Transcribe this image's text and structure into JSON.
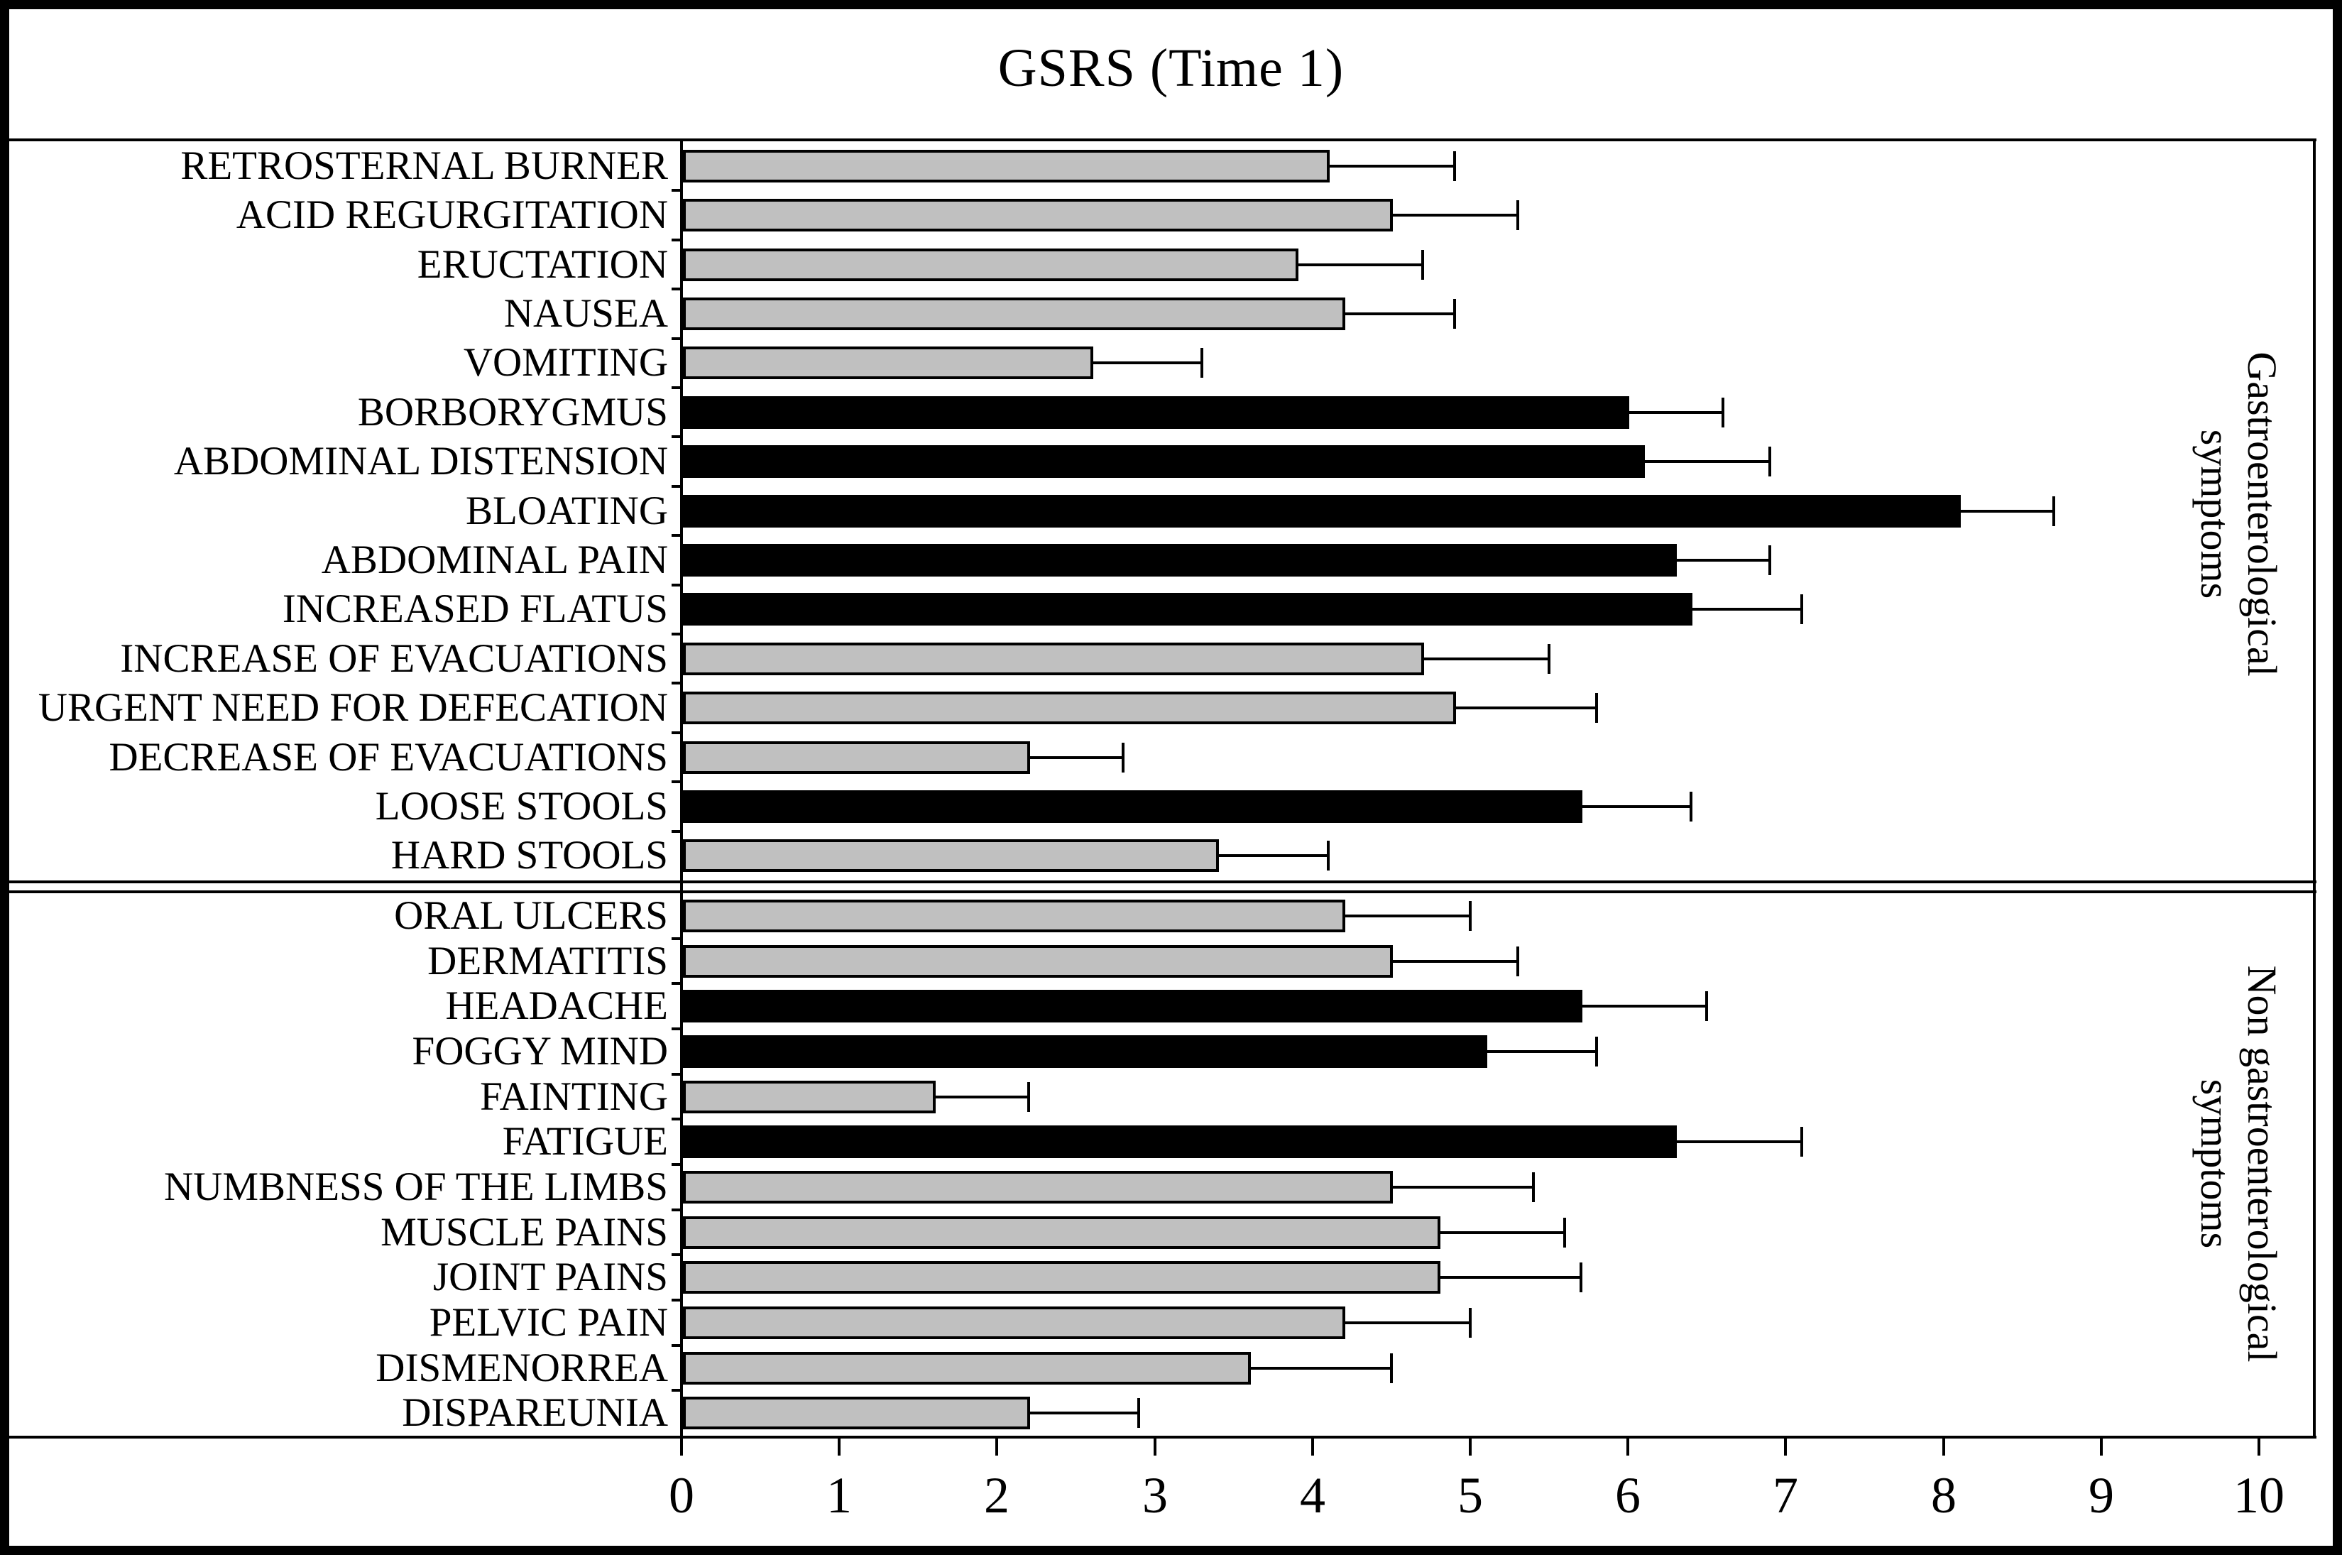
{
  "chart_data": {
    "type": "bar",
    "orientation": "horizontal",
    "title": "GSRS (Time 1)",
    "xlabel": "",
    "ylabel": "",
    "xlim": [
      0,
      10
    ],
    "x_ticks": [
      "0",
      "1",
      "2",
      "3",
      "4",
      "5",
      "6",
      "7",
      "8",
      "9",
      "10"
    ],
    "grid": false,
    "legend": false,
    "error_bars": "upper",
    "groups": [
      {
        "name": "Gastroenterological symptoms",
        "name_lines": [
          "Gastroenterological",
          "symptoms"
        ],
        "rows": [
          {
            "label": "RETROSTERNAL BURNER",
            "value": 4.1,
            "error": 0.8,
            "fill": "grey"
          },
          {
            "label": "ACID REGURGITATION",
            "value": 4.5,
            "error": 0.8,
            "fill": "grey"
          },
          {
            "label": "ERUCTATION",
            "value": 3.9,
            "error": 0.8,
            "fill": "grey"
          },
          {
            "label": "NAUSEA",
            "value": 4.2,
            "error": 0.7,
            "fill": "grey"
          },
          {
            "label": "VOMITING",
            "value": 2.6,
            "error": 0.7,
            "fill": "grey"
          },
          {
            "label": "BORBORYGMUS",
            "value": 6.0,
            "error": 0.6,
            "fill": "black"
          },
          {
            "label": "ABDOMINAL DISTENSION",
            "value": 6.1,
            "error": 0.8,
            "fill": "black"
          },
          {
            "label": "BLOATING",
            "value": 8.1,
            "error": 0.6,
            "fill": "black"
          },
          {
            "label": "ABDOMINAL PAIN",
            "value": 6.3,
            "error": 0.6,
            "fill": "black"
          },
          {
            "label": "INCREASED FLATUS",
            "value": 6.4,
            "error": 0.7,
            "fill": "black"
          },
          {
            "label": "INCREASE OF EVACUATIONS",
            "value": 4.7,
            "error": 0.8,
            "fill": "grey"
          },
          {
            "label": "URGENT NEED FOR DEFECATION",
            "value": 4.9,
            "error": 0.9,
            "fill": "grey"
          },
          {
            "label": "DECREASE OF EVACUATIONS",
            "value": 2.2,
            "error": 0.6,
            "fill": "grey"
          },
          {
            "label": "LOOSE STOOLS",
            "value": 5.7,
            "error": 0.7,
            "fill": "black"
          },
          {
            "label": "HARD STOOLS",
            "value": 3.4,
            "error": 0.7,
            "fill": "grey"
          }
        ]
      },
      {
        "name": "Non gastroenterological symptoms",
        "name_lines": [
          "Non gastroenterological",
          "symptoms"
        ],
        "rows": [
          {
            "label": "ORAL ULCERS",
            "value": 4.2,
            "error": 0.8,
            "fill": "grey"
          },
          {
            "label": "DERMATITIS",
            "value": 4.5,
            "error": 0.8,
            "fill": "grey"
          },
          {
            "label": "HEADACHE",
            "value": 5.7,
            "error": 0.8,
            "fill": "black"
          },
          {
            "label": "FOGGY MIND",
            "value": 5.1,
            "error": 0.7,
            "fill": "black"
          },
          {
            "label": "FAINTING",
            "value": 1.6,
            "error": 0.6,
            "fill": "grey"
          },
          {
            "label": "FATIGUE",
            "value": 6.3,
            "error": 0.8,
            "fill": "black"
          },
          {
            "label": "NUMBNESS OF THE LIMBS",
            "value": 4.5,
            "error": 0.9,
            "fill": "grey"
          },
          {
            "label": "MUSCLE PAINS",
            "value": 4.8,
            "error": 0.8,
            "fill": "grey"
          },
          {
            "label": "JOINT PAINS",
            "value": 4.8,
            "error": 0.9,
            "fill": "grey"
          },
          {
            "label": "PELVIC PAIN",
            "value": 4.2,
            "error": 0.8,
            "fill": "grey"
          },
          {
            "label": "DISMENORREA",
            "value": 3.6,
            "error": 0.9,
            "fill": "grey"
          },
          {
            "label": "DISPAREUNIA",
            "value": 2.2,
            "error": 0.7,
            "fill": "grey"
          }
        ]
      }
    ]
  },
  "colors": {
    "grey_bar": "#c0c0c0",
    "black_bar": "#000000",
    "bar_border": "#000000",
    "line": "#000000",
    "background": "#ffffff"
  }
}
